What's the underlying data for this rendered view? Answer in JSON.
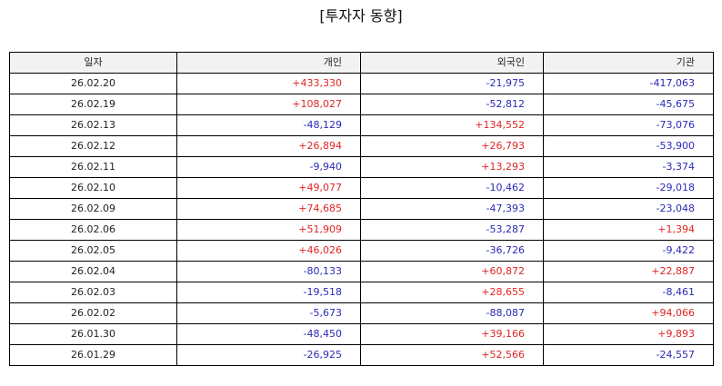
{
  "title": "[투자자 동향]",
  "colors": {
    "positive": "#e02424",
    "negative": "#2a2ab8",
    "header_bg": "#f2f2f2"
  },
  "table": {
    "headers": [
      "일자",
      "개인",
      "외국인",
      "기관"
    ],
    "rows": [
      [
        "26.02.20",
        "+433,330",
        "-21,975",
        "-417,063"
      ],
      [
        "26.02.19",
        "+108,027",
        "-52,812",
        "-45,675"
      ],
      [
        "26.02.13",
        "-48,129",
        "+134,552",
        "-73,076"
      ],
      [
        "26.02.12",
        "+26,894",
        "+26,793",
        "-53,900"
      ],
      [
        "26.02.11",
        "-9,940",
        "+13,293",
        "-3,374"
      ],
      [
        "26.02.10",
        "+49,077",
        "-10,462",
        "-29,018"
      ],
      [
        "26.02.09",
        "+74,685",
        "-47,393",
        "-23,048"
      ],
      [
        "26.02.06",
        "+51,909",
        "-53,287",
        "+1,394"
      ],
      [
        "26.02.05",
        "+46,026",
        "-36,726",
        "-9,422"
      ],
      [
        "26.02.04",
        "-80,133",
        "+60,872",
        "+22,887"
      ],
      [
        "26.02.03",
        "-19,518",
        "+28,655",
        "-8,461"
      ],
      [
        "26.02.02",
        "-5,673",
        "-88,087",
        "+94,066"
      ],
      [
        "26.01.30",
        "-48,450",
        "+39,166",
        "+9,893"
      ],
      [
        "26.01.29",
        "-26,925",
        "+52,566",
        "-24,557"
      ]
    ]
  }
}
